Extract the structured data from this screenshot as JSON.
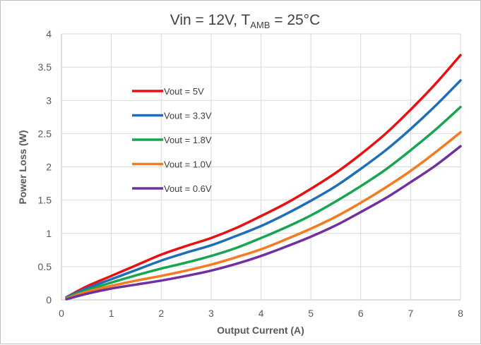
{
  "chart_data": {
    "type": "line",
    "title": {
      "main_a": "Vin = 12V, T",
      "main_sub": "AMB",
      "main_b": " = 25°C"
    },
    "xlabel": "Output Current (A)",
    "ylabel": "Power Loss (W)",
    "xlim": [
      0,
      8
    ],
    "ylim": [
      0,
      4
    ],
    "xticks": [
      "0",
      "1",
      "2",
      "3",
      "4",
      "5",
      "6",
      "7",
      "8"
    ],
    "yticks": [
      "0",
      "0.5",
      "1",
      "1.5",
      "2",
      "2.5",
      "3",
      "3.5",
      "4"
    ],
    "grid": true,
    "legend_position": "top-left",
    "series": [
      {
        "name": "Vout = 5V",
        "color": "#e81010",
        "points": [
          [
            0.1,
            0.04
          ],
          [
            0.5,
            0.2
          ],
          [
            1,
            0.36
          ],
          [
            1.5,
            0.52
          ],
          [
            2,
            0.68
          ],
          [
            2.5,
            0.81
          ],
          [
            3,
            0.93
          ],
          [
            3.5,
            1.08
          ],
          [
            4,
            1.26
          ],
          [
            4.5,
            1.45
          ],
          [
            5,
            1.67
          ],
          [
            5.5,
            1.91
          ],
          [
            6,
            2.19
          ],
          [
            6.5,
            2.5
          ],
          [
            7,
            2.86
          ],
          [
            7.5,
            3.25
          ],
          [
            8,
            3.68
          ]
        ]
      },
      {
        "name": "Vout = 3.3V",
        "color": "#1f6fb8",
        "points": [
          [
            0.1,
            0.04
          ],
          [
            0.5,
            0.17
          ],
          [
            1,
            0.31
          ],
          [
            1.5,
            0.45
          ],
          [
            2,
            0.59
          ],
          [
            2.5,
            0.71
          ],
          [
            3,
            0.82
          ],
          [
            3.5,
            0.96
          ],
          [
            4,
            1.11
          ],
          [
            4.5,
            1.29
          ],
          [
            5,
            1.49
          ],
          [
            5.5,
            1.71
          ],
          [
            6,
            1.97
          ],
          [
            6.5,
            2.25
          ],
          [
            7,
            2.57
          ],
          [
            7.5,
            2.92
          ],
          [
            8,
            3.3
          ]
        ]
      },
      {
        "name": "Vout = 1.8V",
        "color": "#17a650",
        "points": [
          [
            0.1,
            0.03
          ],
          [
            0.5,
            0.14
          ],
          [
            1,
            0.26
          ],
          [
            1.5,
            0.37
          ],
          [
            2,
            0.47
          ],
          [
            2.5,
            0.56
          ],
          [
            3,
            0.66
          ],
          [
            3.5,
            0.78
          ],
          [
            4,
            0.93
          ],
          [
            4.5,
            1.09
          ],
          [
            5,
            1.27
          ],
          [
            5.5,
            1.48
          ],
          [
            6,
            1.71
          ],
          [
            6.5,
            1.96
          ],
          [
            7,
            2.25
          ],
          [
            7.5,
            2.56
          ],
          [
            8,
            2.9
          ]
        ]
      },
      {
        "name": "Vout = 1.0V",
        "color": "#f47b20",
        "points": [
          [
            0.1,
            0.02
          ],
          [
            0.5,
            0.12
          ],
          [
            1,
            0.21
          ],
          [
            1.5,
            0.29
          ],
          [
            2,
            0.36
          ],
          [
            2.5,
            0.44
          ],
          [
            3,
            0.53
          ],
          [
            3.5,
            0.64
          ],
          [
            4,
            0.76
          ],
          [
            4.5,
            0.91
          ],
          [
            5,
            1.07
          ],
          [
            5.5,
            1.25
          ],
          [
            6,
            1.46
          ],
          [
            6.5,
            1.69
          ],
          [
            7,
            1.94
          ],
          [
            7.5,
            2.22
          ],
          [
            8,
            2.52
          ]
        ]
      },
      {
        "name": "Vout = 0.6V",
        "color": "#7030a0",
        "points": [
          [
            0.1,
            0.01
          ],
          [
            0.5,
            0.09
          ],
          [
            1,
            0.17
          ],
          [
            1.5,
            0.23
          ],
          [
            2,
            0.29
          ],
          [
            2.5,
            0.36
          ],
          [
            3,
            0.44
          ],
          [
            3.5,
            0.54
          ],
          [
            4,
            0.66
          ],
          [
            4.5,
            0.8
          ],
          [
            5,
            0.95
          ],
          [
            5.5,
            1.12
          ],
          [
            6,
            1.32
          ],
          [
            6.5,
            1.53
          ],
          [
            7,
            1.77
          ],
          [
            7.5,
            2.02
          ],
          [
            8,
            2.31
          ]
        ]
      }
    ]
  }
}
